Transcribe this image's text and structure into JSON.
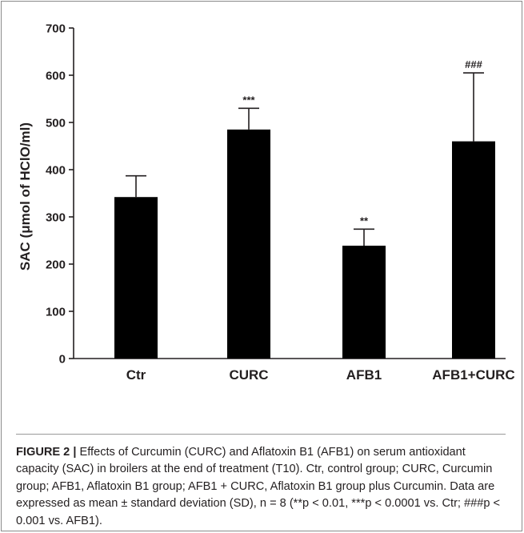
{
  "figure": {
    "caption_label": "FIGURE 2 |",
    "caption_text": " Effects of Curcumin (CURC) and Aflatoxin B1 (AFB1) on serum antioxidant capacity (SAC) in broilers at the end of treatment (T10). Ctr, control group; CURC, Curcumin group; AFB1, Aflatoxin B1 group; AFB1 + CURC, Aflatoxin B1 group plus Curcumin. Data are expressed as mean ± standard deviation (SD), n = 8 (**p < 0.01, ***p < 0.0001 vs. Ctr; ###p < 0.001 vs. AFB1)."
  },
  "chart_data": {
    "type": "bar",
    "title": "",
    "ylabel": "SAC (μmol of HClO/ml)",
    "xlabel": "",
    "categories": [
      "Ctr",
      "CURC",
      "AFB1",
      "AFB1+CURC"
    ],
    "values": [
      342,
      485,
      239,
      460
    ],
    "error": [
      45,
      45,
      35,
      145
    ],
    "annotations": [
      "",
      "***",
      "**",
      "###"
    ],
    "ylim": [
      0,
      700
    ],
    "yticks": [
      0,
      100,
      200,
      300,
      400,
      500,
      600,
      700
    ],
    "grid": false,
    "bar_color": "#000000",
    "axis_color": "#231f20"
  }
}
